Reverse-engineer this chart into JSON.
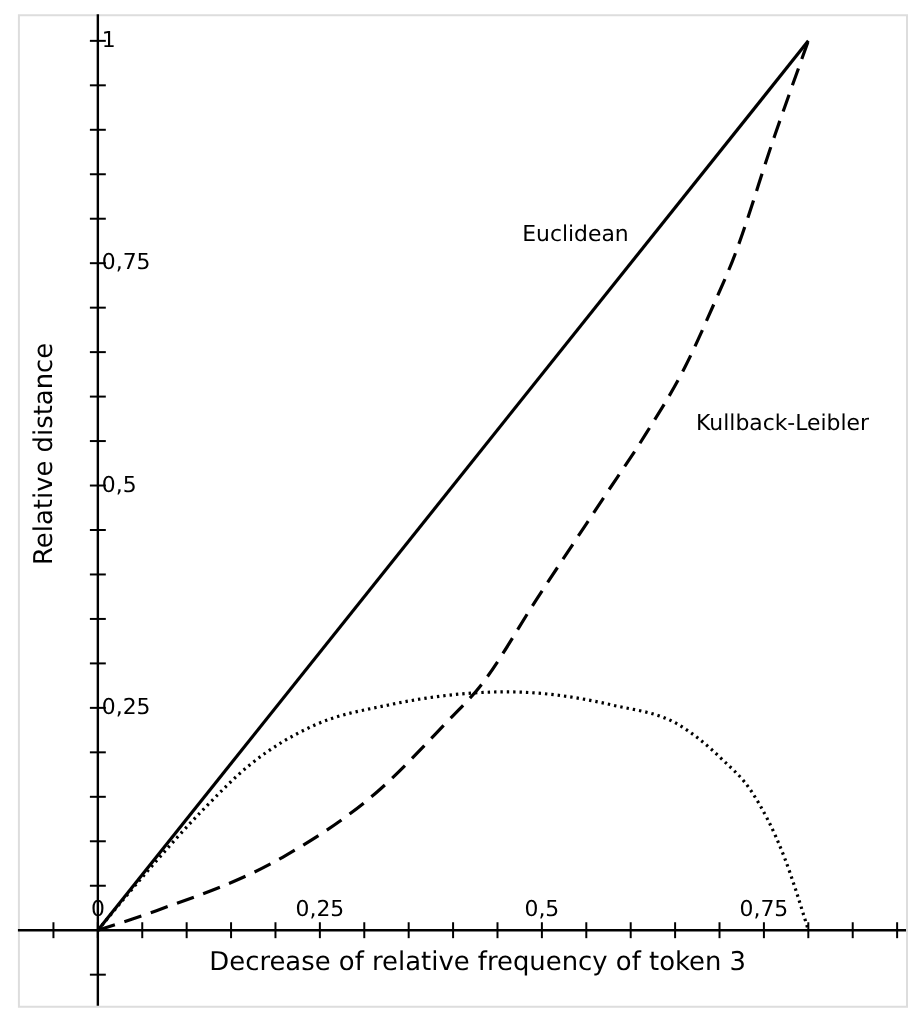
{
  "chart_data": {
    "type": "line",
    "xlabel": "Decrease of relative frequency of token 3",
    "ylabel": "Relative distance",
    "series": [
      {
        "name": "Euclidean",
        "color": "#000000",
        "line_style": "solid",
        "x": [
          0,
          0.8
        ],
        "values": [
          0,
          1
        ]
      },
      {
        "name": "Kullback-Leibler",
        "color": "#000000",
        "line_style": "dashed",
        "x": [
          0,
          0.066,
          0.208,
          0.315,
          0.39,
          0.431,
          0.494,
          0.568,
          0.617,
          0.661,
          0.695,
          0.714,
          0.762,
          0.8
        ],
        "values": [
          0,
          0.022,
          0.082,
          0.156,
          0.231,
          0.275,
          0.372,
          0.484,
          0.558,
          0.633,
          0.707,
          0.751,
          0.893,
          1
        ]
      },
      {
        "color": "#000000",
        "line_style": "dotted",
        "x": [
          0,
          0.059,
          0.118,
          0.17,
          0.245,
          0.326,
          0.46,
          0.58,
          0.654,
          0.702,
          0.736,
          0.773,
          0.8
        ],
        "values": [
          0,
          0.07,
          0.135,
          0.185,
          0.231,
          0.253,
          0.268,
          0.253,
          0.231,
          0.193,
          0.156,
          0.082,
          0
        ]
      }
    ],
    "xlim": [
      -0.09,
      0.91
    ],
    "ylim": [
      -0.085,
      1.03
    ],
    "xticks": [
      {
        "value": -0.05,
        "label": null
      },
      {
        "value": 0,
        "label": "0"
      },
      {
        "value": 0.05,
        "label": null
      },
      {
        "value": 0.1,
        "label": null
      },
      {
        "value": 0.15,
        "label": null
      },
      {
        "value": 0.2,
        "label": null
      },
      {
        "value": 0.25,
        "label": "0,25"
      },
      {
        "value": 0.3,
        "label": null
      },
      {
        "value": 0.35,
        "label": null
      },
      {
        "value": 0.4,
        "label": null
      },
      {
        "value": 0.45,
        "label": null
      },
      {
        "value": 0.5,
        "label": "0,5"
      },
      {
        "value": 0.55,
        "label": null
      },
      {
        "value": 0.6,
        "label": null
      },
      {
        "value": 0.65,
        "label": null
      },
      {
        "value": 0.7,
        "label": null
      },
      {
        "value": 0.75,
        "label": "0,75"
      },
      {
        "value": 0.8,
        "label": null
      },
      {
        "value": 0.85,
        "label": null
      },
      {
        "value": 0.9,
        "label": null
      }
    ],
    "yticks": [
      {
        "value": -0.05,
        "label": null
      },
      {
        "value": 0.05,
        "label": null
      },
      {
        "value": 0.1,
        "label": null
      },
      {
        "value": 0.15,
        "label": null
      },
      {
        "value": 0.2,
        "label": null
      },
      {
        "value": 0.25,
        "label": "0,25"
      },
      {
        "value": 0.3,
        "label": null
      },
      {
        "value": 0.35,
        "label": null
      },
      {
        "value": 0.4,
        "label": null
      },
      {
        "value": 0.45,
        "label": null
      },
      {
        "value": 0.5,
        "label": "0,5"
      },
      {
        "value": 0.55,
        "label": null
      },
      {
        "value": 0.6,
        "label": null
      },
      {
        "value": 0.65,
        "label": null
      },
      {
        "value": 0.7,
        "label": null
      },
      {
        "value": 0.75,
        "label": "0,75"
      },
      {
        "value": 0.8,
        "label": null
      },
      {
        "value": 0.85,
        "label": null
      },
      {
        "value": 0.9,
        "label": null
      },
      {
        "value": 0.95,
        "label": null
      },
      {
        "value": 1,
        "label": "1"
      }
    ],
    "grid": false,
    "marker": "none"
  }
}
